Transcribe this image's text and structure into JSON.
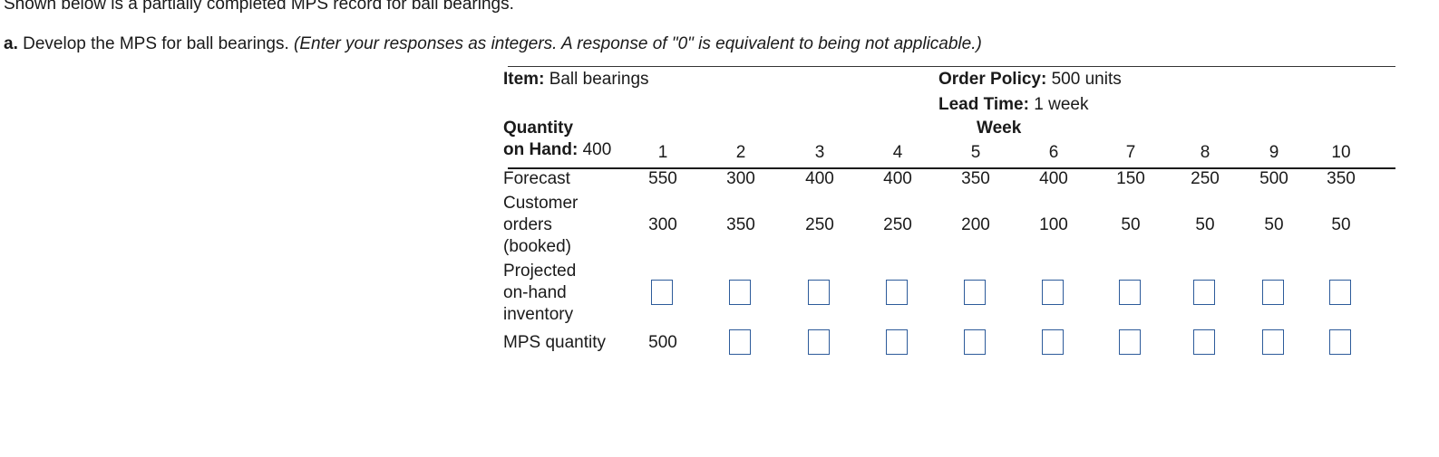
{
  "intro": "Shown below is a partially completed MPS record for ball bearings.",
  "question": {
    "part": "a.",
    "text": "Develop the MPS for ball bearings.",
    "note": "(Enter your responses as integers. A response of \"0\" is equivalent to being not applicable.)"
  },
  "record": {
    "item_label": "Item:",
    "item_value": "Ball bearings",
    "order_policy_label": "Order Policy:",
    "order_policy_value": "500 units",
    "lead_time_label": "Lead Time:",
    "lead_time_value": "1 week",
    "qoh_label_1": "Quantity",
    "qoh_label_2": "on Hand:",
    "qoh_value": "400",
    "week_label": "Week",
    "weeks": [
      "1",
      "2",
      "3",
      "4",
      "5",
      "6",
      "7",
      "8",
      "9",
      "10"
    ],
    "forecast_label": "Forecast",
    "forecast": [
      "550",
      "300",
      "400",
      "400",
      "350",
      "400",
      "150",
      "250",
      "500",
      "350"
    ],
    "orders_label_1": "Customer",
    "orders_label_2": "orders",
    "orders_label_3": "(booked)",
    "orders": [
      "300",
      "350",
      "250",
      "250",
      "200",
      "100",
      "50",
      "50",
      "50",
      "50"
    ],
    "poh_label_1": "Projected",
    "poh_label_2": "on-hand",
    "poh_label_3": "inventory",
    "poh_values": [
      "",
      "",
      "",
      "",
      "",
      "",
      "",
      "",
      "",
      ""
    ],
    "mps_label": "MPS quantity",
    "mps_week1": "500",
    "mps_values": [
      "",
      "",
      "",
      "",
      "",
      "",
      "",
      "",
      ""
    ]
  },
  "colors": {
    "input_border": "#2d5b9a",
    "text": "#1a1a1a"
  }
}
